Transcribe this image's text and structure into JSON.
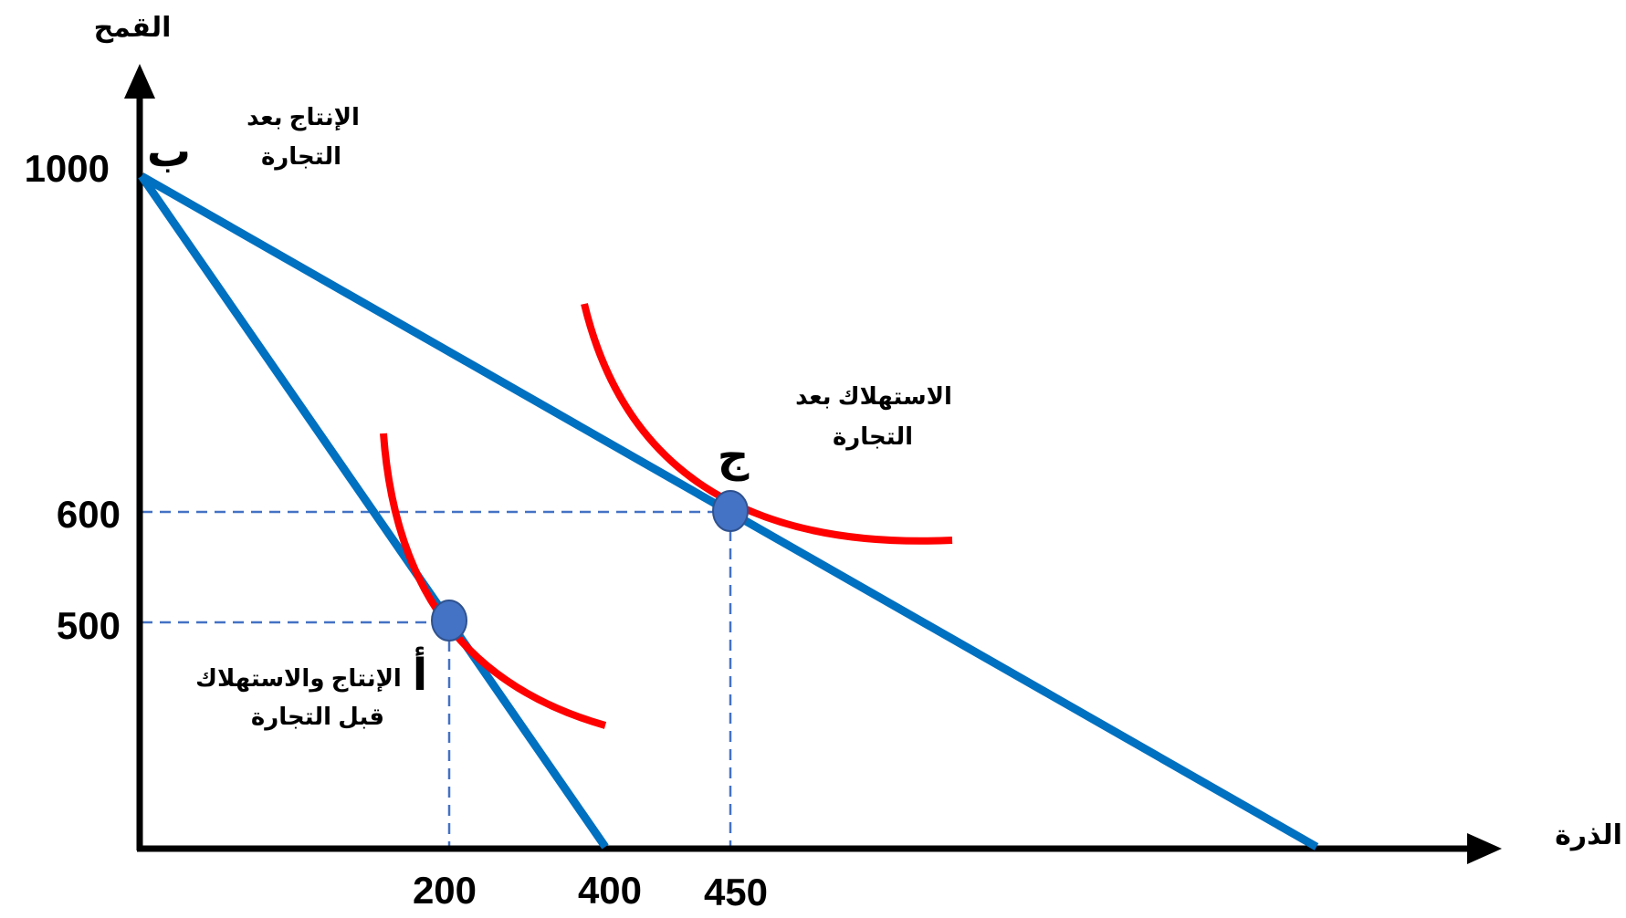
{
  "colors": {
    "axis": "#000000",
    "ppf": "#0070C0",
    "indifference": "#FF0000",
    "guide": "#4472C4",
    "point_fill": "#4472C4",
    "point_stroke": "#2F528F"
  },
  "axes": {
    "y_title": "القمح",
    "x_title": "الذرة"
  },
  "ticks": {
    "y": [
      "1000",
      "600",
      "500"
    ],
    "x": [
      "200",
      "400",
      "450"
    ]
  },
  "points": {
    "b_label": "ب",
    "a_label": "أ",
    "c_label": "ج"
  },
  "annotations": {
    "production_after_trade": [
      "الإنتاج بعد",
      "التجارة"
    ],
    "consumption_after_trade": [
      "الاستهلاك بعد",
      "التجارة"
    ],
    "before_trade": [
      "الإنتاج والاستهلاك",
      "قبل التجارة"
    ]
  },
  "chart_data": {
    "type": "line",
    "x_label": "الذرة",
    "y_label": "القمح",
    "series": [
      {
        "points": [
          [
            0,
            1000
          ],
          [
            400,
            0
          ]
        ]
      },
      {
        "points": [
          [
            0,
            1000
          ],
          [
            854,
            0
          ]
        ]
      }
    ],
    "equilibrium_points": [
      {
        "label": "أ",
        "x": 200,
        "y": 500
      },
      {
        "label": "ج",
        "x": 450,
        "y": 600
      }
    ]
  }
}
